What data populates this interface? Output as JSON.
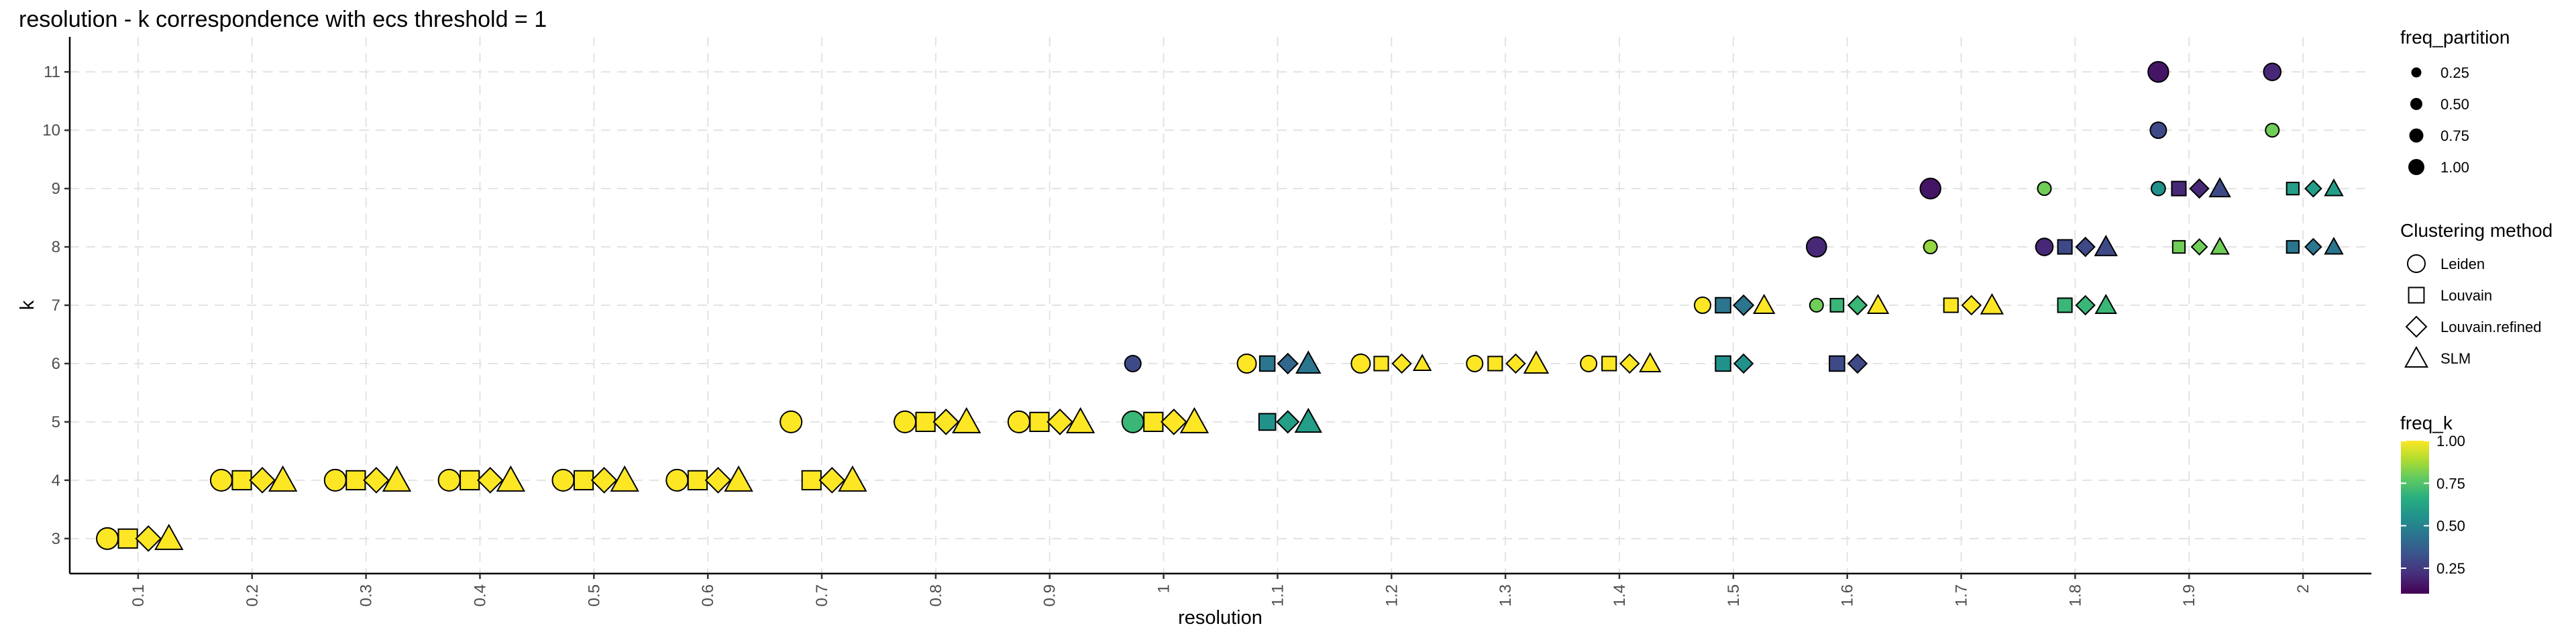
{
  "chart_data": {
    "type": "scatter",
    "title": "resolution - k correspondence with ecs threshold = 1",
    "xlabel": "resolution",
    "ylabel": "k",
    "xlim": [
      0.04,
      2.06
    ],
    "ylim": [
      2.4,
      11.6
    ],
    "x_ticks": [
      0.1,
      0.2,
      0.3,
      0.4,
      0.5,
      0.6,
      0.7,
      0.8,
      0.9,
      1.0,
      1.1,
      1.2,
      1.3,
      1.4,
      1.5,
      1.6,
      1.7,
      1.8,
      1.9,
      2.0
    ],
    "x_tick_labels": [
      "0.1",
      "0.2",
      "0.3",
      "0.4",
      "0.5",
      "0.6",
      "0.7",
      "0.8",
      "0.9",
      "1",
      "1.1",
      "1.2",
      "1.3",
      "1.4",
      "1.5",
      "1.6",
      "1.7",
      "1.8",
      "1.9",
      "2"
    ],
    "y_ticks": [
      3,
      4,
      5,
      6,
      7,
      8,
      9,
      10,
      11
    ],
    "y_tick_labels": [
      "3",
      "4",
      "5",
      "6",
      "7",
      "8",
      "9",
      "10",
      "11"
    ],
    "grid": true,
    "method_order": [
      "Leiden",
      "Louvain",
      "Louvain.refined",
      "SLM"
    ],
    "method_shapes": [
      "circle",
      "square",
      "diamond",
      "triangle"
    ],
    "points": [
      {
        "res": 0.1,
        "k": 3,
        "method": "Leiden",
        "freq_partition": 1.0,
        "freq_k": 1.0
      },
      {
        "res": 0.1,
        "k": 3,
        "method": "Louvain",
        "freq_partition": 1.0,
        "freq_k": 1.0
      },
      {
        "res": 0.1,
        "k": 3,
        "method": "Louvain.refined",
        "freq_partition": 1.0,
        "freq_k": 1.0
      },
      {
        "res": 0.1,
        "k": 3,
        "method": "SLM",
        "freq_partition": 1.0,
        "freq_k": 1.0
      },
      {
        "res": 0.2,
        "k": 4,
        "method": "Leiden",
        "freq_partition": 1.0,
        "freq_k": 1.0
      },
      {
        "res": 0.2,
        "k": 4,
        "method": "Louvain",
        "freq_partition": 1.0,
        "freq_k": 1.0
      },
      {
        "res": 0.2,
        "k": 4,
        "method": "Louvain.refined",
        "freq_partition": 1.0,
        "freq_k": 1.0
      },
      {
        "res": 0.2,
        "k": 4,
        "method": "SLM",
        "freq_partition": 1.0,
        "freq_k": 1.0
      },
      {
        "res": 0.3,
        "k": 4,
        "method": "Leiden",
        "freq_partition": 1.0,
        "freq_k": 1.0
      },
      {
        "res": 0.3,
        "k": 4,
        "method": "Louvain",
        "freq_partition": 1.0,
        "freq_k": 1.0
      },
      {
        "res": 0.3,
        "k": 4,
        "method": "Louvain.refined",
        "freq_partition": 1.0,
        "freq_k": 1.0
      },
      {
        "res": 0.3,
        "k": 4,
        "method": "SLM",
        "freq_partition": 1.0,
        "freq_k": 1.0
      },
      {
        "res": 0.4,
        "k": 4,
        "method": "Leiden",
        "freq_partition": 1.0,
        "freq_k": 1.0
      },
      {
        "res": 0.4,
        "k": 4,
        "method": "Louvain",
        "freq_partition": 1.0,
        "freq_k": 1.0
      },
      {
        "res": 0.4,
        "k": 4,
        "method": "Louvain.refined",
        "freq_partition": 1.0,
        "freq_k": 1.0
      },
      {
        "res": 0.4,
        "k": 4,
        "method": "SLM",
        "freq_partition": 1.0,
        "freq_k": 1.0
      },
      {
        "res": 0.5,
        "k": 4,
        "method": "Leiden",
        "freq_partition": 1.0,
        "freq_k": 1.0
      },
      {
        "res": 0.5,
        "k": 4,
        "method": "Louvain",
        "freq_partition": 1.0,
        "freq_k": 1.0
      },
      {
        "res": 0.5,
        "k": 4,
        "method": "Louvain.refined",
        "freq_partition": 1.0,
        "freq_k": 1.0
      },
      {
        "res": 0.5,
        "k": 4,
        "method": "SLM",
        "freq_partition": 1.0,
        "freq_k": 1.0
      },
      {
        "res": 0.6,
        "k": 4,
        "method": "Leiden",
        "freq_partition": 1.0,
        "freq_k": 1.0
      },
      {
        "res": 0.6,
        "k": 4,
        "method": "Louvain",
        "freq_partition": 1.0,
        "freq_k": 1.0
      },
      {
        "res": 0.6,
        "k": 4,
        "method": "Louvain.refined",
        "freq_partition": 1.0,
        "freq_k": 1.0
      },
      {
        "res": 0.6,
        "k": 4,
        "method": "SLM",
        "freq_partition": 1.0,
        "freq_k": 1.0
      },
      {
        "res": 0.7,
        "k": 5,
        "method": "Leiden",
        "freq_partition": 1.0,
        "freq_k": 1.0
      },
      {
        "res": 0.7,
        "k": 4,
        "method": "Louvain",
        "freq_partition": 1.0,
        "freq_k": 1.0
      },
      {
        "res": 0.7,
        "k": 4,
        "method": "Louvain.refined",
        "freq_partition": 1.0,
        "freq_k": 1.0
      },
      {
        "res": 0.7,
        "k": 4,
        "method": "SLM",
        "freq_partition": 1.0,
        "freq_k": 1.0
      },
      {
        "res": 0.8,
        "k": 5,
        "method": "Leiden",
        "freq_partition": 1.0,
        "freq_k": 1.0
      },
      {
        "res": 0.8,
        "k": 5,
        "method": "Louvain",
        "freq_partition": 1.0,
        "freq_k": 1.0
      },
      {
        "res": 0.8,
        "k": 5,
        "method": "Louvain.refined",
        "freq_partition": 1.0,
        "freq_k": 1.0
      },
      {
        "res": 0.8,
        "k": 5,
        "method": "SLM",
        "freq_partition": 1.0,
        "freq_k": 1.0
      },
      {
        "res": 0.9,
        "k": 5,
        "method": "Leiden",
        "freq_partition": 1.0,
        "freq_k": 1.0
      },
      {
        "res": 0.9,
        "k": 5,
        "method": "Louvain",
        "freq_partition": 1.0,
        "freq_k": 1.0
      },
      {
        "res": 0.9,
        "k": 5,
        "method": "Louvain.refined",
        "freq_partition": 1.0,
        "freq_k": 1.0
      },
      {
        "res": 0.9,
        "k": 5,
        "method": "SLM",
        "freq_partition": 1.0,
        "freq_k": 1.0
      },
      {
        "res": 1.0,
        "k": 5,
        "method": "Leiden",
        "freq_partition": 1.0,
        "freq_k": 0.7
      },
      {
        "res": 1.0,
        "k": 6,
        "method": "Leiden",
        "freq_partition": 0.5,
        "freq_k": 0.3
      },
      {
        "res": 1.0,
        "k": 5,
        "method": "Louvain",
        "freq_partition": 1.0,
        "freq_k": 1.0
      },
      {
        "res": 1.0,
        "k": 5,
        "method": "Louvain.refined",
        "freq_partition": 1.0,
        "freq_k": 1.0
      },
      {
        "res": 1.0,
        "k": 5,
        "method": "SLM",
        "freq_partition": 1.0,
        "freq_k": 1.0
      },
      {
        "res": 1.1,
        "k": 6,
        "method": "Leiden",
        "freq_partition": 0.75,
        "freq_k": 1.0
      },
      {
        "res": 1.1,
        "k": 5,
        "method": "Louvain",
        "freq_partition": 0.75,
        "freq_k": 0.55
      },
      {
        "res": 1.1,
        "k": 6,
        "method": "Louvain",
        "freq_partition": 0.6,
        "freq_k": 0.45
      },
      {
        "res": 1.1,
        "k": 5,
        "method": "Louvain.refined",
        "freq_partition": 0.75,
        "freq_k": 0.6
      },
      {
        "res": 1.1,
        "k": 6,
        "method": "Louvain.refined",
        "freq_partition": 0.6,
        "freq_k": 0.4
      },
      {
        "res": 1.1,
        "k": 5,
        "method": "SLM",
        "freq_partition": 0.9,
        "freq_k": 0.6
      },
      {
        "res": 1.1,
        "k": 6,
        "method": "SLM",
        "freq_partition": 0.75,
        "freq_k": 0.45
      },
      {
        "res": 1.2,
        "k": 6,
        "method": "Leiden",
        "freq_partition": 0.75,
        "freq_k": 1.0
      },
      {
        "res": 1.2,
        "k": 6,
        "method": "Louvain",
        "freq_partition": 0.5,
        "freq_k": 1.0
      },
      {
        "res": 1.2,
        "k": 6,
        "method": "Louvain.refined",
        "freq_partition": 0.5,
        "freq_k": 1.0
      },
      {
        "res": 1.2,
        "k": 6,
        "method": "SLM",
        "freq_partition": 0.25,
        "freq_k": 1.0
      },
      {
        "res": 1.3,
        "k": 6,
        "method": "Leiden",
        "freq_partition": 0.5,
        "freq_k": 1.0
      },
      {
        "res": 1.3,
        "k": 6,
        "method": "Louvain",
        "freq_partition": 0.5,
        "freq_k": 1.0
      },
      {
        "res": 1.3,
        "k": 6,
        "method": "Louvain.refined",
        "freq_partition": 0.5,
        "freq_k": 1.0
      },
      {
        "res": 1.3,
        "k": 6,
        "method": "SLM",
        "freq_partition": 0.75,
        "freq_k": 1.0
      },
      {
        "res": 1.4,
        "k": 6,
        "method": "Leiden",
        "freq_partition": 0.5,
        "freq_k": 1.0
      },
      {
        "res": 1.4,
        "k": 6,
        "method": "Louvain",
        "freq_partition": 0.5,
        "freq_k": 1.0
      },
      {
        "res": 1.4,
        "k": 6,
        "method": "Louvain.refined",
        "freq_partition": 0.5,
        "freq_k": 1.0
      },
      {
        "res": 1.4,
        "k": 6,
        "method": "SLM",
        "freq_partition": 0.5,
        "freq_k": 1.0
      },
      {
        "res": 1.5,
        "k": 7,
        "method": "Leiden",
        "freq_partition": 0.5,
        "freq_k": 1.0
      },
      {
        "res": 1.5,
        "k": 7,
        "method": "Louvain",
        "freq_partition": 0.6,
        "freq_k": 0.45
      },
      {
        "res": 1.5,
        "k": 6,
        "method": "Louvain",
        "freq_partition": 0.6,
        "freq_k": 0.55
      },
      {
        "res": 1.5,
        "k": 7,
        "method": "Louvain.refined",
        "freq_partition": 0.6,
        "freq_k": 0.45
      },
      {
        "res": 1.5,
        "k": 6,
        "method": "Louvain.refined",
        "freq_partition": 0.5,
        "freq_k": 0.55
      },
      {
        "res": 1.5,
        "k": 7,
        "method": "SLM",
        "freq_partition": 0.5,
        "freq_k": 1.0
      },
      {
        "res": 1.6,
        "k": 8,
        "method": "Leiden",
        "freq_partition": 0.85,
        "freq_k": 0.2
      },
      {
        "res": 1.6,
        "k": 7,
        "method": "Leiden",
        "freq_partition": 0.25,
        "freq_k": 0.8
      },
      {
        "res": 1.6,
        "k": 7,
        "method": "Louvain",
        "freq_partition": 0.4,
        "freq_k": 0.7
      },
      {
        "res": 1.6,
        "k": 6,
        "method": "Louvain",
        "freq_partition": 0.6,
        "freq_k": 0.3
      },
      {
        "res": 1.6,
        "k": 7,
        "method": "Louvain.refined",
        "freq_partition": 0.5,
        "freq_k": 0.7
      },
      {
        "res": 1.6,
        "k": 6,
        "method": "Louvain.refined",
        "freq_partition": 0.5,
        "freq_k": 0.3
      },
      {
        "res": 1.6,
        "k": 7,
        "method": "SLM",
        "freq_partition": 0.5,
        "freq_k": 1.0
      },
      {
        "res": 1.7,
        "k": 9,
        "method": "Leiden",
        "freq_partition": 0.9,
        "freq_k": 0.15
      },
      {
        "res": 1.7,
        "k": 8,
        "method": "Leiden",
        "freq_partition": 0.25,
        "freq_k": 0.85
      },
      {
        "res": 1.7,
        "k": 7,
        "method": "Louvain",
        "freq_partition": 0.5,
        "freq_k": 1.0
      },
      {
        "res": 1.7,
        "k": 7,
        "method": "Louvain.refined",
        "freq_partition": 0.5,
        "freq_k": 1.0
      },
      {
        "res": 1.7,
        "k": 7,
        "method": "SLM",
        "freq_partition": 0.6,
        "freq_k": 1.0
      },
      {
        "res": 1.8,
        "k": 9,
        "method": "Leiden",
        "freq_partition": 0.25,
        "freq_k": 0.8
      },
      {
        "res": 1.8,
        "k": 8,
        "method": "Leiden",
        "freq_partition": 0.6,
        "freq_k": 0.2
      },
      {
        "res": 1.8,
        "k": 8,
        "method": "Louvain",
        "freq_partition": 0.5,
        "freq_k": 0.3
      },
      {
        "res": 1.8,
        "k": 7,
        "method": "Louvain",
        "freq_partition": 0.5,
        "freq_k": 0.7
      },
      {
        "res": 1.8,
        "k": 8,
        "method": "Louvain.refined",
        "freq_partition": 0.5,
        "freq_k": 0.3
      },
      {
        "res": 1.8,
        "k": 7,
        "method": "Louvain.refined",
        "freq_partition": 0.5,
        "freq_k": 0.7
      },
      {
        "res": 1.8,
        "k": 8,
        "method": "SLM",
        "freq_partition": 0.6,
        "freq_k": 0.3
      },
      {
        "res": 1.8,
        "k": 7,
        "method": "SLM",
        "freq_partition": 0.5,
        "freq_k": 0.7
      },
      {
        "res": 1.9,
        "k": 11,
        "method": "Leiden",
        "freq_partition": 0.9,
        "freq_k": 0.15
      },
      {
        "res": 1.9,
        "k": 10,
        "method": "Leiden",
        "freq_partition": 0.5,
        "freq_k": 0.3
      },
      {
        "res": 1.9,
        "k": 9,
        "method": "Leiden",
        "freq_partition": 0.3,
        "freq_k": 0.55
      },
      {
        "res": 1.9,
        "k": 9,
        "method": "Louvain",
        "freq_partition": 0.5,
        "freq_k": 0.2
      },
      {
        "res": 1.9,
        "k": 8,
        "method": "Louvain",
        "freq_partition": 0.3,
        "freq_k": 0.8
      },
      {
        "res": 1.9,
        "k": 9,
        "method": "Louvain.refined",
        "freq_partition": 0.5,
        "freq_k": 0.2
      },
      {
        "res": 1.9,
        "k": 8,
        "method": "Louvain.refined",
        "freq_partition": 0.25,
        "freq_k": 0.8
      },
      {
        "res": 1.9,
        "k": 9,
        "method": "SLM",
        "freq_partition": 0.5,
        "freq_k": 0.3
      },
      {
        "res": 1.9,
        "k": 8,
        "method": "SLM",
        "freq_partition": 0.3,
        "freq_k": 0.8
      },
      {
        "res": 2.0,
        "k": 11,
        "method": "Leiden",
        "freq_partition": 0.6,
        "freq_k": 0.2
      },
      {
        "res": 2.0,
        "k": 10,
        "method": "Leiden",
        "freq_partition": 0.25,
        "freq_k": 0.8
      },
      {
        "res": 2.0,
        "k": 9,
        "method": "Louvain",
        "freq_partition": 0.3,
        "freq_k": 0.6
      },
      {
        "res": 2.0,
        "k": 8,
        "method": "Louvain",
        "freq_partition": 0.3,
        "freq_k": 0.45
      },
      {
        "res": 2.0,
        "k": 9,
        "method": "Louvain.refined",
        "freq_partition": 0.3,
        "freq_k": 0.6
      },
      {
        "res": 2.0,
        "k": 8,
        "method": "Louvain.refined",
        "freq_partition": 0.3,
        "freq_k": 0.45
      },
      {
        "res": 2.0,
        "k": 9,
        "method": "SLM",
        "freq_partition": 0.3,
        "freq_k": 0.6
      },
      {
        "res": 2.0,
        "k": 8,
        "method": "SLM",
        "freq_partition": 0.3,
        "freq_k": 0.45
      }
    ],
    "legend_position": "right",
    "legend": {
      "size": {
        "title": "freq_partition",
        "values": [
          0.25,
          0.5,
          0.75,
          1.0
        ],
        "labels": [
          "0.25",
          "0.50",
          "0.75",
          "1.00"
        ]
      },
      "shape": {
        "title": "Clustering method",
        "labels": [
          "Leiden",
          "Louvain",
          "Louvain.refined",
          "SLM"
        ]
      },
      "color": {
        "title": "freq_k",
        "type": "colorbar",
        "palette": "viridis",
        "range": [
          0.1,
          1.0
        ],
        "values": [
          0.25,
          0.5,
          0.75,
          1.0
        ],
        "labels": [
          "0.25",
          "0.50",
          "0.75",
          "1.00"
        ]
      }
    }
  }
}
